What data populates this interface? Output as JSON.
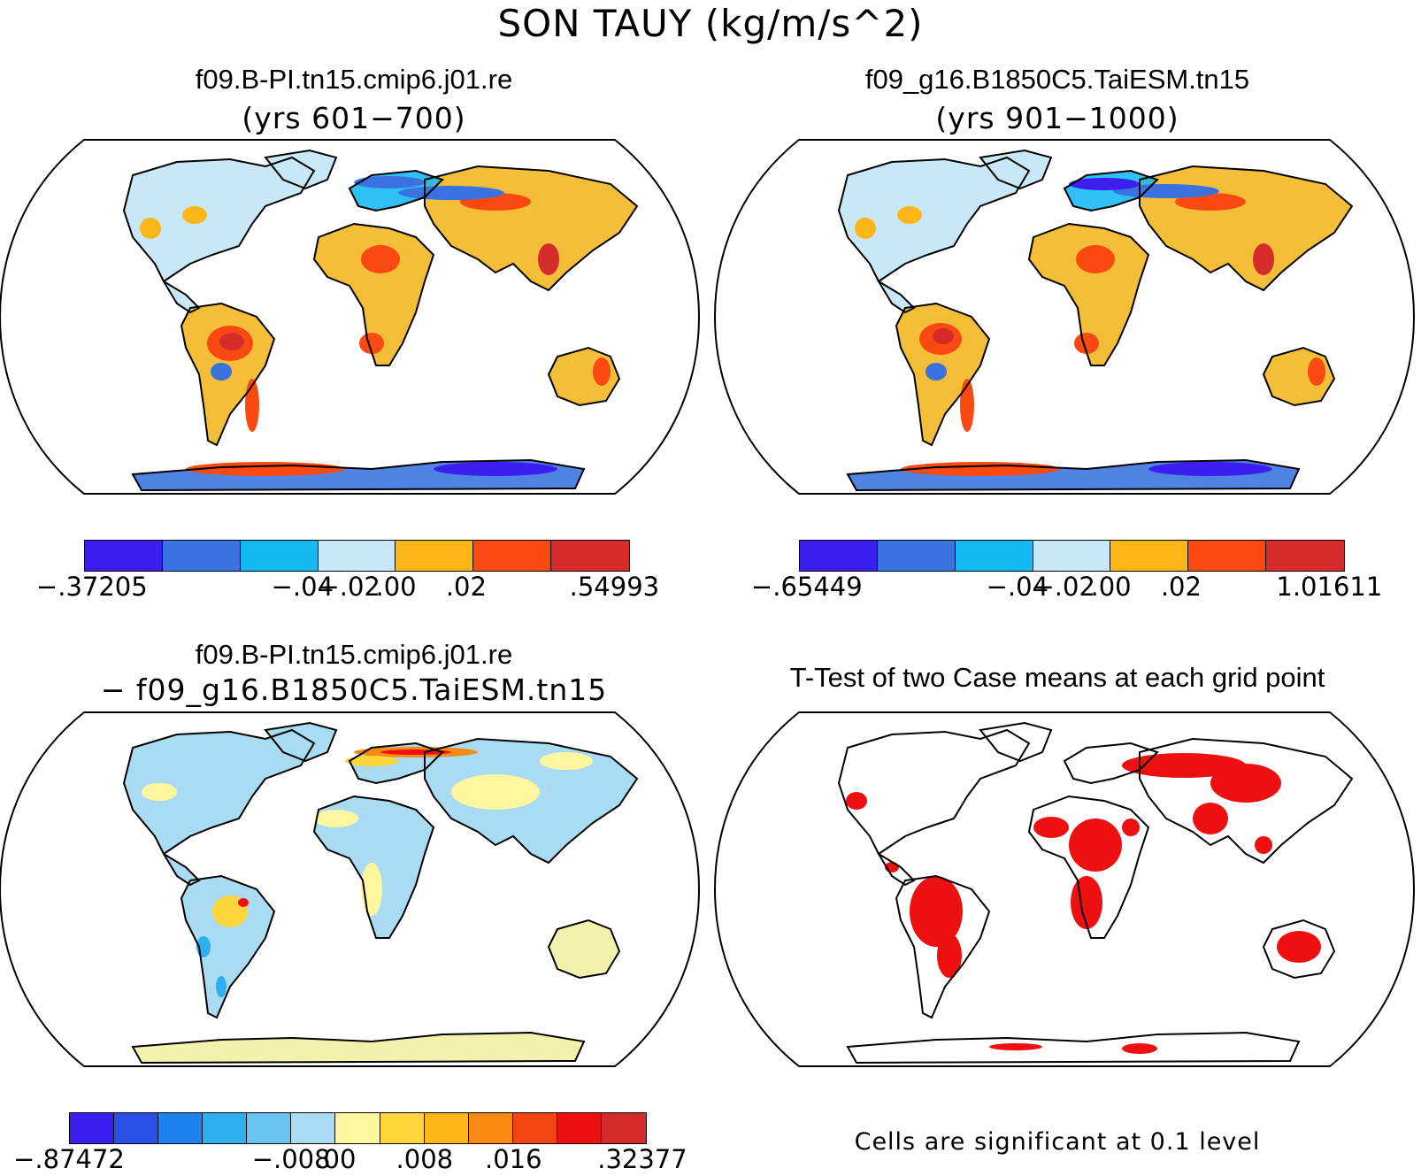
{
  "title": "SON TAUY (kg/m/s^2)",
  "panels": [
    {
      "title": "f09.B-PI.tn15.cmip6.j01.re",
      "subtitle": "(yrs 601−700)",
      "colorbar": {
        "colors": [
          "#3b1ff0",
          "#3a72e0",
          "#14b9f3",
          "#c9e8f7",
          "#fdb617",
          "#fa4a12",
          "#d52b2b"
        ],
        "labels": [
          "−.37205",
          "−.04",
          "−.02",
          ".00",
          ".02",
          ".54993"
        ]
      }
    },
    {
      "title": "f09_g16.B1850C5.TaiESM.tn15",
      "subtitle": "(yrs 901−1000)",
      "colorbar": {
        "colors": [
          "#3b1ff0",
          "#3a72e0",
          "#14b9f3",
          "#c9e8f7",
          "#fdb617",
          "#fa4a12",
          "#d52b2b"
        ],
        "labels": [
          "−.65449",
          "−.04",
          "−.02",
          ".00",
          ".02",
          "1.01611"
        ]
      }
    },
    {
      "title": "f09.B-PI.tn15.cmip6.j01.re",
      "subtitle": "− f09_g16.B1850C5.TaiESM.tn15",
      "colorbar": {
        "colors": [
          "#3b1ff0",
          "#2850e6",
          "#1b83f0",
          "#2fb0ee",
          "#67c3ef",
          "#a9dbf2",
          "#fff6a0",
          "#fed53a",
          "#fdb617",
          "#fb8a12",
          "#f2450f",
          "#ee1010",
          "#d52b2b"
        ],
        "labels": [
          "−.87472",
          "−.008",
          ".00",
          ".008",
          ".016",
          ".32377"
        ]
      }
    },
    {
      "title": "T-Test of two Case means at each grid point",
      "note": "Cells are significant at 0.1 level",
      "significant_color": "#ee1010"
    }
  ],
  "map_colors": {
    "ocean": "#ffffff",
    "coast": "#000000"
  }
}
